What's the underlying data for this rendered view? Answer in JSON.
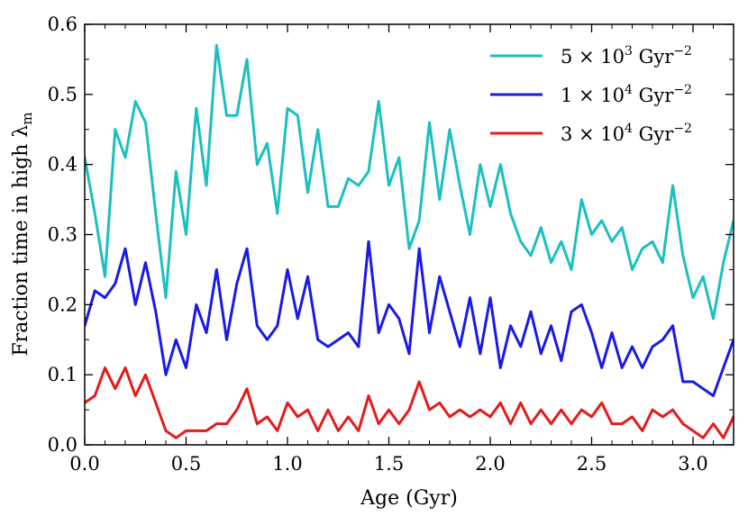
{
  "chart_data": {
    "type": "line",
    "title": "",
    "xlabel": "Age (Gyr)",
    "ylabel": "Fraction time in high λ",
    "ylabel_subscript": "m",
    "xlim": [
      0.0,
      3.2
    ],
    "ylim": [
      0.0,
      0.6
    ],
    "xticks": [
      "0.0",
      "0.5",
      "1.0",
      "1.5",
      "2.0",
      "2.5",
      "3.0"
    ],
    "yticks": [
      "0.0",
      "0.1",
      "0.2",
      "0.3",
      "0.4",
      "0.5",
      "0.6"
    ],
    "grid": false,
    "legend_position": "top-right",
    "x": [
      0.0,
      0.05,
      0.1,
      0.15,
      0.2,
      0.25,
      0.3,
      0.35,
      0.4,
      0.45,
      0.5,
      0.55,
      0.6,
      0.65,
      0.7,
      0.75,
      0.8,
      0.85,
      0.9,
      0.95,
      1.0,
      1.05,
      1.1,
      1.15,
      1.2,
      1.25,
      1.3,
      1.35,
      1.4,
      1.45,
      1.5,
      1.55,
      1.6,
      1.65,
      1.7,
      1.75,
      1.8,
      1.85,
      1.9,
      1.95,
      2.0,
      2.05,
      2.1,
      2.15,
      2.2,
      2.25,
      2.3,
      2.35,
      2.4,
      2.45,
      2.5,
      2.55,
      2.6,
      2.65,
      2.7,
      2.75,
      2.8,
      2.85,
      2.9,
      2.95,
      3.0,
      3.05,
      3.1,
      3.15,
      3.2
    ],
    "series": [
      {
        "name_mantissa": "5 × 10",
        "name_exponent": "3",
        "name_unit": "Gyr",
        "name_unit_exponent": "−2",
        "color": "#1cbfbf",
        "values": [
          0.41,
          0.33,
          0.24,
          0.45,
          0.41,
          0.49,
          0.46,
          0.33,
          0.21,
          0.39,
          0.3,
          0.48,
          0.37,
          0.57,
          0.47,
          0.47,
          0.55,
          0.4,
          0.43,
          0.33,
          0.48,
          0.47,
          0.36,
          0.45,
          0.34,
          0.34,
          0.38,
          0.37,
          0.39,
          0.49,
          0.37,
          0.41,
          0.28,
          0.32,
          0.46,
          0.35,
          0.45,
          0.37,
          0.3,
          0.4,
          0.34,
          0.4,
          0.33,
          0.29,
          0.27,
          0.31,
          0.26,
          0.29,
          0.25,
          0.35,
          0.3,
          0.32,
          0.29,
          0.31,
          0.25,
          0.28,
          0.29,
          0.26,
          0.37,
          0.27,
          0.21,
          0.24,
          0.18,
          0.26,
          0.32
        ]
      },
      {
        "name_mantissa": "1 × 10",
        "name_exponent": "4",
        "name_unit": "Gyr",
        "name_unit_exponent": "−2",
        "color": "#1a1ae6",
        "values": [
          0.17,
          0.22,
          0.21,
          0.23,
          0.28,
          0.2,
          0.26,
          0.19,
          0.1,
          0.15,
          0.11,
          0.2,
          0.16,
          0.25,
          0.15,
          0.23,
          0.28,
          0.17,
          0.15,
          0.17,
          0.25,
          0.18,
          0.24,
          0.15,
          0.14,
          0.15,
          0.16,
          0.14,
          0.29,
          0.16,
          0.2,
          0.18,
          0.13,
          0.28,
          0.16,
          0.24,
          0.19,
          0.14,
          0.21,
          0.13,
          0.21,
          0.11,
          0.17,
          0.14,
          0.19,
          0.13,
          0.17,
          0.12,
          0.19,
          0.2,
          0.16,
          0.11,
          0.16,
          0.11,
          0.14,
          0.11,
          0.14,
          0.15,
          0.17,
          0.09,
          0.09,
          0.08,
          0.07,
          0.11,
          0.15
        ]
      },
      {
        "name_mantissa": "3 × 10",
        "name_exponent": "4",
        "name_unit": "Gyr",
        "name_unit_exponent": "−2",
        "color": "#e61a1a",
        "values": [
          0.06,
          0.07,
          0.11,
          0.08,
          0.11,
          0.07,
          0.1,
          0.06,
          0.02,
          0.01,
          0.02,
          0.02,
          0.02,
          0.03,
          0.03,
          0.05,
          0.08,
          0.03,
          0.04,
          0.02,
          0.06,
          0.04,
          0.05,
          0.02,
          0.05,
          0.02,
          0.04,
          0.02,
          0.07,
          0.03,
          0.05,
          0.03,
          0.05,
          0.09,
          0.05,
          0.06,
          0.04,
          0.05,
          0.04,
          0.05,
          0.04,
          0.06,
          0.03,
          0.06,
          0.03,
          0.05,
          0.03,
          0.05,
          0.03,
          0.05,
          0.04,
          0.06,
          0.03,
          0.03,
          0.04,
          0.02,
          0.05,
          0.04,
          0.05,
          0.03,
          0.02,
          0.01,
          0.03,
          0.01,
          0.04
        ]
      }
    ]
  }
}
